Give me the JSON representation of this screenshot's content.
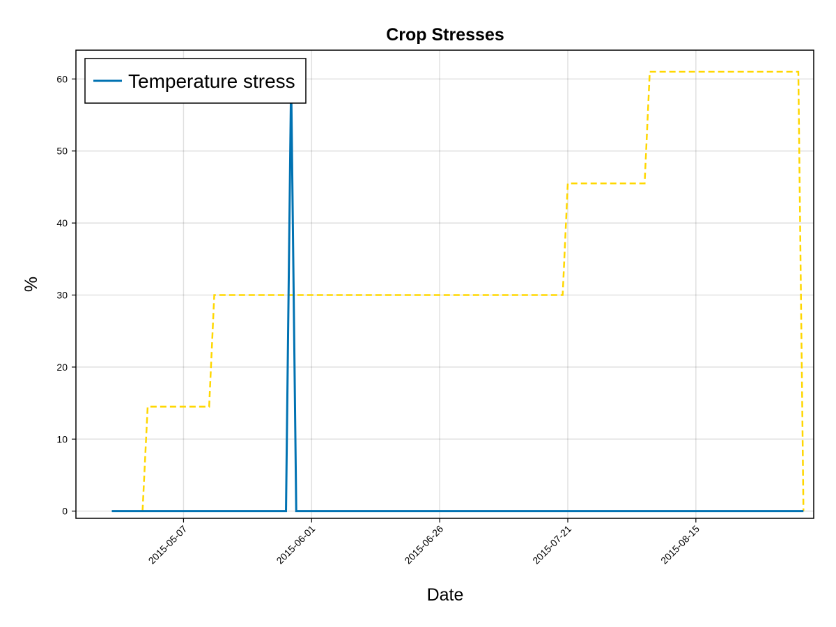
{
  "chart_data": {
    "type": "line",
    "title": "Crop Stresses",
    "xlabel": "Date",
    "ylabel": "%",
    "x_axis_type": "date",
    "xlim": [
      "2015-04-16",
      "2015-09-07"
    ],
    "ylim": [
      -1,
      64
    ],
    "x_ticks": [
      "2015-05-07",
      "2015-06-01",
      "2015-06-26",
      "2015-07-21",
      "2015-08-15"
    ],
    "y_ticks": [
      0,
      10,
      20,
      30,
      40,
      50,
      60
    ],
    "grid": true,
    "legend_position": "top-left",
    "series": [
      {
        "name": "Temperature stress",
        "style": "solid",
        "color": "#0072b2",
        "points": [
          [
            "2015-04-23",
            0
          ],
          [
            "2015-05-27",
            0
          ],
          [
            "2015-05-28",
            60
          ],
          [
            "2015-05-29",
            0
          ],
          [
            "2015-09-05",
            0
          ]
        ]
      },
      {
        "style": "dashed",
        "color": "#ffd700",
        "points": [
          [
            "2015-04-29",
            0
          ],
          [
            "2015-04-30",
            14.5
          ],
          [
            "2015-05-12",
            14.5
          ],
          [
            "2015-05-13",
            30
          ],
          [
            "2015-07-20",
            30
          ],
          [
            "2015-07-21",
            45.5
          ],
          [
            "2015-08-05",
            45.5
          ],
          [
            "2015-08-06",
            61
          ],
          [
            "2015-09-04",
            61
          ],
          [
            "2015-09-05",
            0
          ]
        ]
      }
    ]
  }
}
